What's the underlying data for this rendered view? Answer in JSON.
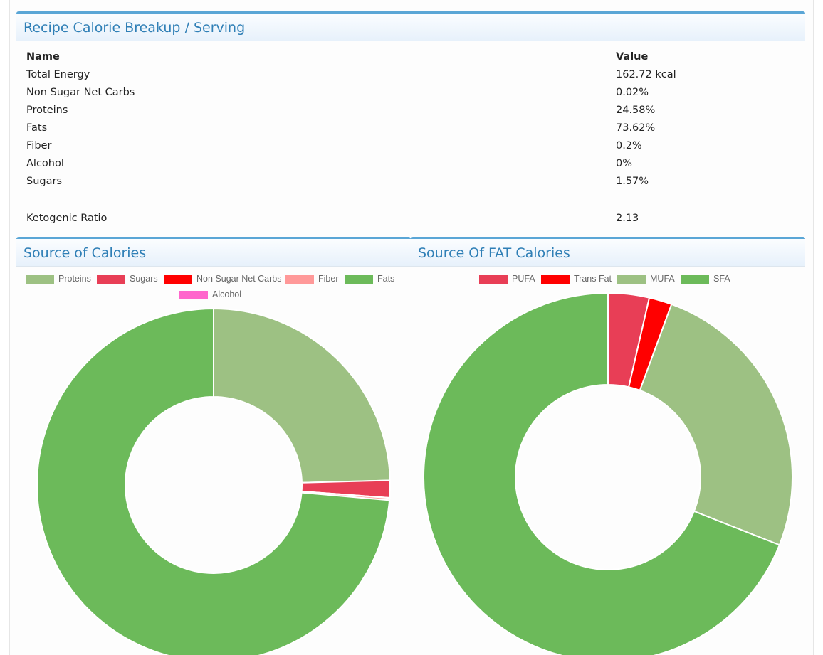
{
  "breakup": {
    "title": "Recipe Calorie Breakup / Serving",
    "header": {
      "name": "Name",
      "value": "Value"
    },
    "rows": [
      {
        "name": "Total Energy",
        "value": "162.72 kcal"
      },
      {
        "name": "Non Sugar Net Carbs",
        "value": "0.02%"
      },
      {
        "name": "Proteins",
        "value": "24.58%"
      },
      {
        "name": "Fats",
        "value": "73.62%"
      },
      {
        "name": "Fiber",
        "value": "0.2%"
      },
      {
        "name": "Alcohol",
        "value": "0%"
      },
      {
        "name": "Sugars",
        "value": "1.57%"
      }
    ],
    "ketogenic": {
      "name": "Ketogenic Ratio",
      "value": "2.13"
    }
  },
  "calories_panel": {
    "title": "Source of Calories"
  },
  "fat_panel": {
    "title": "Source Of FAT Calories"
  },
  "chart_data": [
    {
      "type": "pie",
      "title": "Source of Calories",
      "donut": true,
      "legend_position": "top",
      "categories": [
        "Proteins",
        "Sugars",
        "Non Sugar Net Carbs",
        "Fiber",
        "Fats",
        "Alcohol"
      ],
      "values": [
        24.58,
        1.57,
        0.02,
        0.2,
        73.62,
        0
      ],
      "colors": [
        "#9dc183",
        "#e83e56",
        "#ff0000",
        "#ff9999",
        "#6cba5a",
        "#ff66cc"
      ]
    },
    {
      "type": "pie",
      "title": "Source Of FAT Calories",
      "donut": true,
      "legend_position": "top",
      "categories": [
        "PUFA",
        "Trans Fat",
        "MUFA",
        "SFA"
      ],
      "values": [
        3.6,
        2.0,
        25.4,
        69.0
      ],
      "colors": [
        "#e83e56",
        "#ff0000",
        "#9dc183",
        "#6cba5a"
      ]
    }
  ]
}
